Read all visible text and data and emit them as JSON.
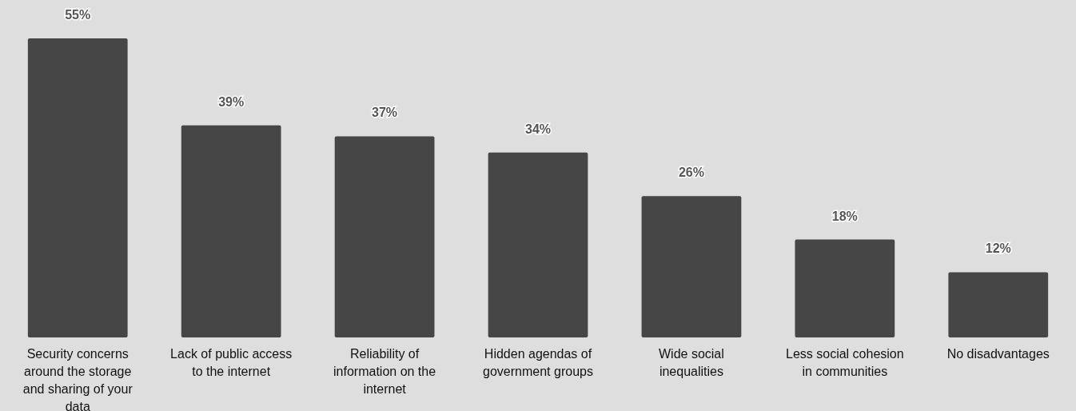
{
  "chart_data": {
    "type": "bar",
    "categories": [
      "Security concerns around the storage and sharing of your data",
      "Lack of public access to the internet",
      "Reliability of information on the internet",
      "Hidden agendas of government groups",
      "Wide social inequalities",
      "Less social cohesion in communities",
      "No disadvantages"
    ],
    "values": [
      55,
      39,
      37,
      34,
      26,
      18,
      12
    ],
    "value_labels": [
      "55%",
      "39%",
      "37%",
      "34%",
      "26%",
      "18%",
      "12%"
    ],
    "color": "#464646"
  }
}
